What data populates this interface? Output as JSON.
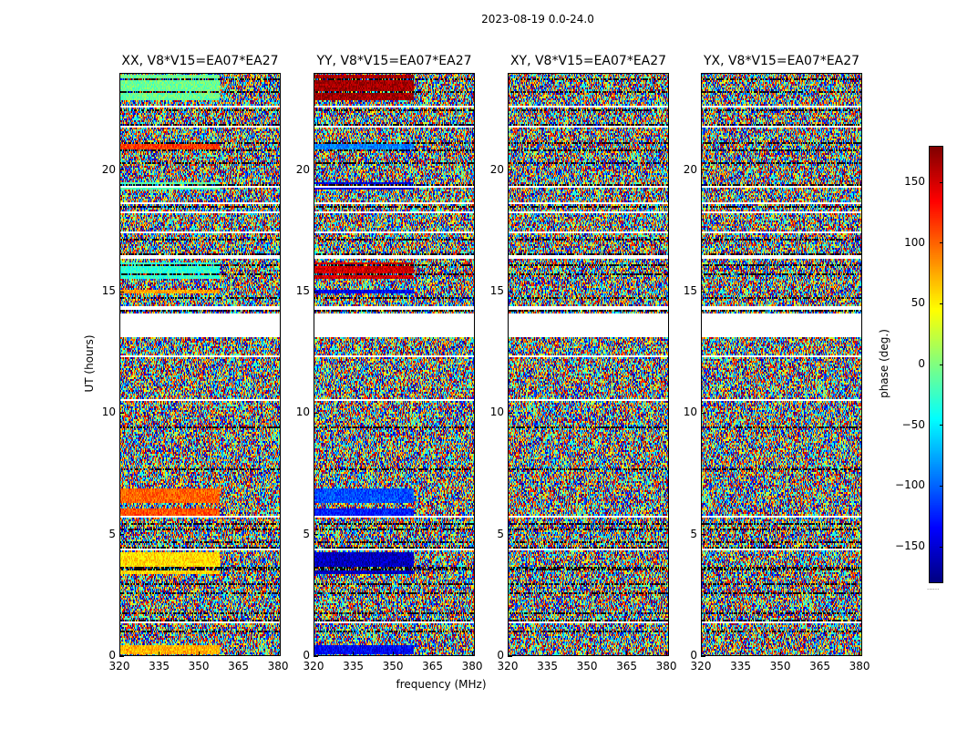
{
  "chart_data": {
    "type": "heatmap",
    "title": "2023-08-19 0.0-24.0",
    "xlabel": "frequency (MHz)",
    "ylabel": "UT (hours)",
    "colorbar_label": "phase (deg.)",
    "xlim": [
      320,
      381
    ],
    "ylim": [
      0,
      24
    ],
    "clim": [
      -180,
      180
    ],
    "x_ticks": [
      320,
      335,
      350,
      365,
      380
    ],
    "x_tick_labels": [
      "320",
      "335",
      "350",
      "365",
      "380"
    ],
    "y_ticks": [
      0,
      5,
      10,
      15,
      20
    ],
    "y_tick_labels": [
      "0",
      "5",
      "10",
      "15",
      "20"
    ],
    "colorbar_ticks": [
      150,
      100,
      50,
      0,
      -50,
      -100,
      -150
    ],
    "colorbar_tick_labels": [
      "150",
      "100",
      "50",
      "0",
      "−50",
      "−100",
      "−150"
    ],
    "colorbar_footer": "......",
    "colormap": "jet",
    "panels": [
      {
        "name": "XX",
        "title": "XX, V8*V15=EA07*EA27",
        "mode": "xx"
      },
      {
        "name": "YY",
        "title": "YY, V8*V15=EA07*EA27",
        "mode": "yy"
      },
      {
        "name": "XY",
        "title": "XY, V8*V15=EA07*EA27",
        "mode": "noise"
      },
      {
        "name": "YX",
        "title": "YX, V8*V15=EA07*EA27",
        "mode": "noise"
      }
    ],
    "data_gaps_hours": [
      [
        13.1,
        14.1
      ]
    ]
  }
}
